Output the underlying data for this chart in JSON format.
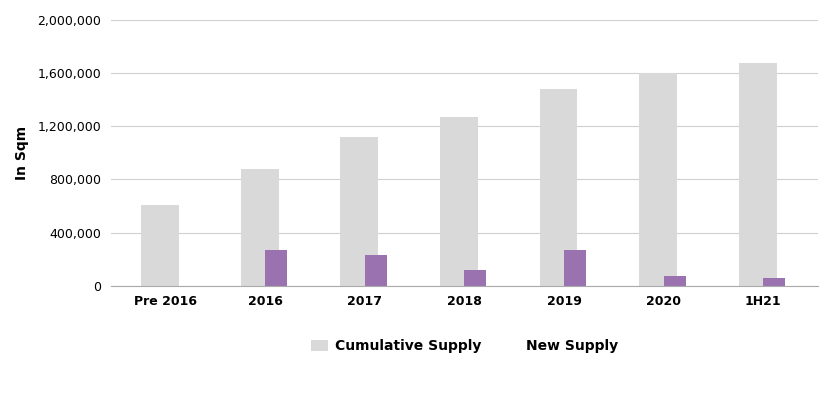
{
  "categories": [
    "Pre 2016",
    "2016",
    "2017",
    "2018",
    "2019",
    "2020",
    "1H21"
  ],
  "cumulative_supply": [
    610000,
    880000,
    1120000,
    1270000,
    1480000,
    1600000,
    1680000
  ],
  "new_supply": [
    0,
    270000,
    230000,
    120000,
    270000,
    70000,
    60000
  ],
  "cumulative_color": "#d9d9d9",
  "new_supply_color": "#9b72b0",
  "ylabel": "In Sqm",
  "ylim": [
    0,
    2000000
  ],
  "yticks": [
    0,
    400000,
    800000,
    1200000,
    1600000,
    2000000
  ],
  "legend_labels": [
    "Cumulative Supply",
    "New Supply"
  ],
  "cum_bar_width": 0.38,
  "new_bar_width": 0.22,
  "background_color": "#ffffff",
  "grid_color": "#d0d0d0",
  "axis_fontsize": 10,
  "legend_fontsize": 10,
  "tick_fontsize": 9
}
